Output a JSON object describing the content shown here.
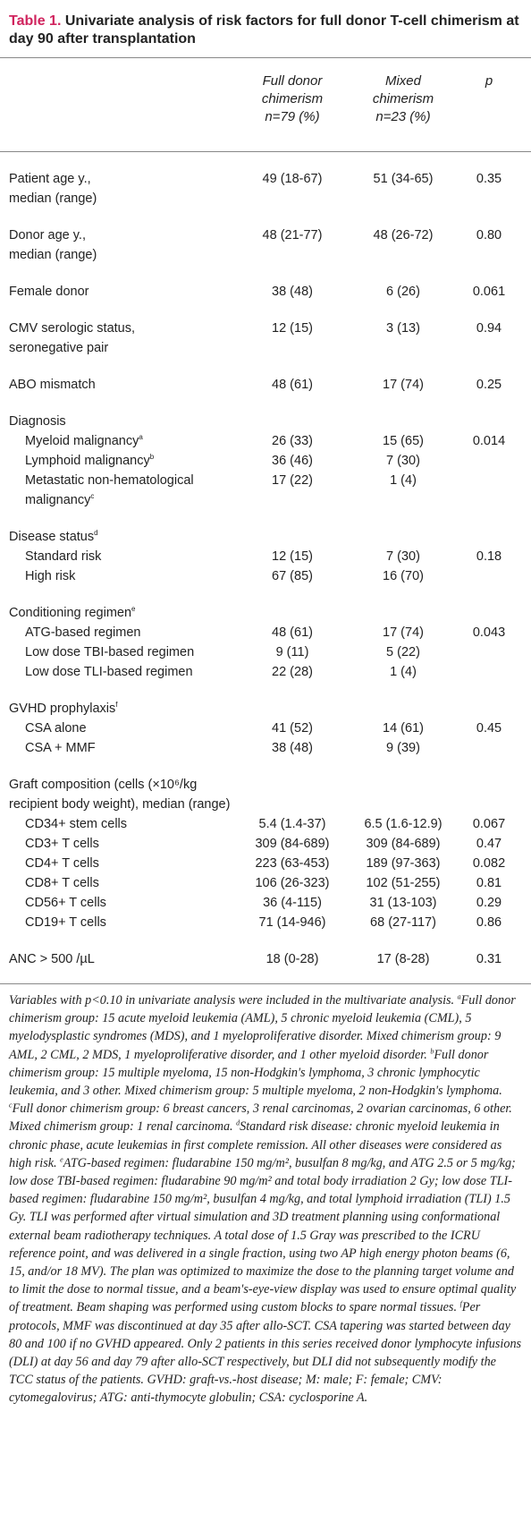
{
  "title": {
    "label": "Table 1.",
    "text": "Univariate analysis of risk factors for full donor T-cell chimerism at day 90 after transplantation"
  },
  "table": {
    "header": {
      "full": [
        "Full donor",
        "chimerism",
        "n=79 (%)"
      ],
      "mixed": [
        "Mixed",
        "chimerism",
        "n=23 (%)"
      ],
      "p": [
        "p"
      ]
    },
    "groups": [
      {
        "rows": [
          {
            "label": [
              "Patient age y.,",
              "median (range)"
            ],
            "full": "49 (18-67)",
            "mixed": "51 (34-65)",
            "p": "0.35"
          }
        ]
      },
      {
        "rows": [
          {
            "label": [
              "Donor age y.,",
              "median (range)"
            ],
            "full": "48 (21-77)",
            "mixed": "48 (26-72)",
            "p": "0.80"
          }
        ]
      },
      {
        "rows": [
          {
            "label": [
              "Female donor"
            ],
            "full": "38 (48)",
            "mixed": "6 (26)",
            "p": "0.061"
          }
        ]
      },
      {
        "rows": [
          {
            "label": [
              "CMV serologic status,",
              "seronegative pair"
            ],
            "full": "12 (15)",
            "mixed": "3 (13)",
            "p": "0.94"
          }
        ]
      },
      {
        "rows": [
          {
            "label": [
              "ABO mismatch"
            ],
            "full": "48 (61)",
            "mixed": "17 (74)",
            "p": "0.25"
          }
        ]
      },
      {
        "rows": [
          {
            "label": [
              "Diagnosis"
            ]
          },
          {
            "label": [
              "Myeloid malignancy"
            ],
            "sup": "a",
            "indent": true,
            "full": "26 (33)",
            "mixed": "15 (65)",
            "p": "0.014"
          },
          {
            "label": [
              "Lymphoid malignancy"
            ],
            "sup": "b",
            "indent": true,
            "full": "36 (46)",
            "mixed": "7 (30)"
          },
          {
            "label": [
              "Metastatic non-hematological",
              "malignancy"
            ],
            "sup": "c",
            "indent": true,
            "full": "17 (22)",
            "mixed": "1 (4)"
          }
        ]
      },
      {
        "rows": [
          {
            "label": [
              "Disease status"
            ],
            "sup": "d"
          },
          {
            "label": [
              "Standard risk"
            ],
            "indent": true,
            "full": "12 (15)",
            "mixed": "7 (30)",
            "p": "0.18"
          },
          {
            "label": [
              "High risk"
            ],
            "indent": true,
            "full": "67 (85)",
            "mixed": "16 (70)"
          }
        ]
      },
      {
        "rows": [
          {
            "label": [
              "Conditioning regimen"
            ],
            "sup": "e"
          },
          {
            "label": [
              "ATG-based regimen"
            ],
            "indent": true,
            "full": "48 (61)",
            "mixed": "17 (74)",
            "p": "0.043"
          },
          {
            "label": [
              "Low dose TBI-based regimen"
            ],
            "indent": true,
            "full": "9 (11)",
            "mixed": "5 (22)"
          },
          {
            "label": [
              "Low dose TLI-based regimen"
            ],
            "indent": true,
            "full": "22 (28)",
            "mixed": "1 (4)"
          }
        ]
      },
      {
        "rows": [
          {
            "label": [
              "GVHD prophylaxis"
            ],
            "sup": "f"
          },
          {
            "label": [
              "CSA alone"
            ],
            "indent": true,
            "full": "41 (52)",
            "mixed": "14 (61)",
            "p": "0.45"
          },
          {
            "label": [
              "CSA + MMF"
            ],
            "indent": true,
            "full": "38 (48)",
            "mixed": "9 (39)"
          }
        ]
      },
      {
        "rows": [
          {
            "label": [
              "Graft composition (cells (×10⁶/kg",
              "recipient body weight), median (range)"
            ]
          },
          {
            "label": [
              "CD34+ stem cells"
            ],
            "indent": true,
            "full": "5.4 (1.4-37)",
            "mixed": "6.5 (1.6-12.9)",
            "p": "0.067"
          },
          {
            "label": [
              "CD3+ T cells"
            ],
            "indent": true,
            "full": "309 (84-689)",
            "mixed": "309 (84-689)",
            "p": "0.47"
          },
          {
            "label": [
              "CD4+ T cells"
            ],
            "indent": true,
            "full": "223 (63-453)",
            "mixed": "189 (97-363)",
            "p": "0.082"
          },
          {
            "label": [
              "CD8+ T cells"
            ],
            "indent": true,
            "full": "106 (26-323)",
            "mixed": "102 (51-255)",
            "p": "0.81"
          },
          {
            "label": [
              "CD56+ T cells"
            ],
            "indent": true,
            "full": "36 (4-115)",
            "mixed": "31 (13-103)",
            "p": "0.29"
          },
          {
            "label": [
              "CD19+ T cells"
            ],
            "indent": true,
            "full": "71 (14-946)",
            "mixed": "68 (27-117)",
            "p": "0.86"
          }
        ]
      },
      {
        "rows": [
          {
            "label": [
              "ANC > 500 /µL"
            ],
            "full": "18 (0-28)",
            "mixed": "17 (8-28)",
            "p": "0.31"
          }
        ]
      }
    ]
  },
  "footnote": [
    {
      "text": "Variables with p<0.10 in univariate analysis were included in the multivariate analysis. "
    },
    {
      "sup": "a"
    },
    {
      "text": "Full donor chimerism group: 15 acute myeloid leukemia (AML), 5 chronic myeloid leukemia (CML), 5 myelodysplastic syndromes (MDS), and 1 myeloproliferative disorder. Mixed chimerism group: 9 AML, 2 CML, 2 MDS, 1 myeloproliferative disorder, and 1 other myeloid disorder. "
    },
    {
      "sup": "b"
    },
    {
      "text": "Full donor chimerism group: 15 multiple myeloma, 15 non-Hodgkin's lymphoma, 3 chronic lymphocytic leukemia, and 3 other. Mixed chimerism group: 5 multiple myeloma, 2 non-Hodgkin's lymphoma. "
    },
    {
      "sup": "c"
    },
    {
      "text": "Full donor chimerism group: 6 breast cancers, 3 renal carcinomas, 2 ovarian carcinomas, 6 other. Mixed chimerism group: 1 renal carcinoma. "
    },
    {
      "sup": "d"
    },
    {
      "text": "Standard risk disease: chronic myeloid leukemia in chronic phase, acute leukemias in first complete remission. All other diseases were considered as high risk. "
    },
    {
      "sup": "e"
    },
    {
      "text": "ATG-based regimen: fludarabine 150 mg/m², busulfan 8 mg/kg, and ATG 2.5 or 5 mg/kg; low dose TBI-based regimen: fludarabine 90 mg/m² and total body irradiation 2 Gy; low dose TLI-based regimen: fludarabine 150 mg/m², busulfan 4 mg/kg, and total lymphoid irradiation (TLI) 1.5 Gy. TLI was performed after virtual simulation and 3D treatment planning using conformational external beam radiotherapy techniques. A total dose of 1.5 Gray was prescribed to the ICRU reference point, and was delivered in a single fraction, using two AP high energy photon beams (6, 15, and/or 18 MV). The plan was optimized to maximize the dose to the planning target volume and to limit the dose to normal tissue, and a beam's-eye-view display was used to ensure optimal quality of treatment. Beam shaping was performed using custom blocks to spare normal tissues. "
    },
    {
      "sup": "f"
    },
    {
      "text": "Per protocols, MMF was discontinued at day 35 after allo-SCT. CSA tapering was started between day 80 and 100 if no GVHD appeared. Only 2 patients in this series received donor lymphocyte infusions (DLI) at day 56 and day 79 after allo-SCT respectively, but DLI did not subsequently modify the TCC status of the patients. GVHD: graft-vs.-host disease; M: male; F: female; CMV: cytomegalovirus; ATG: anti-thymocyte globulin; CSA: cyclosporine A."
    }
  ]
}
